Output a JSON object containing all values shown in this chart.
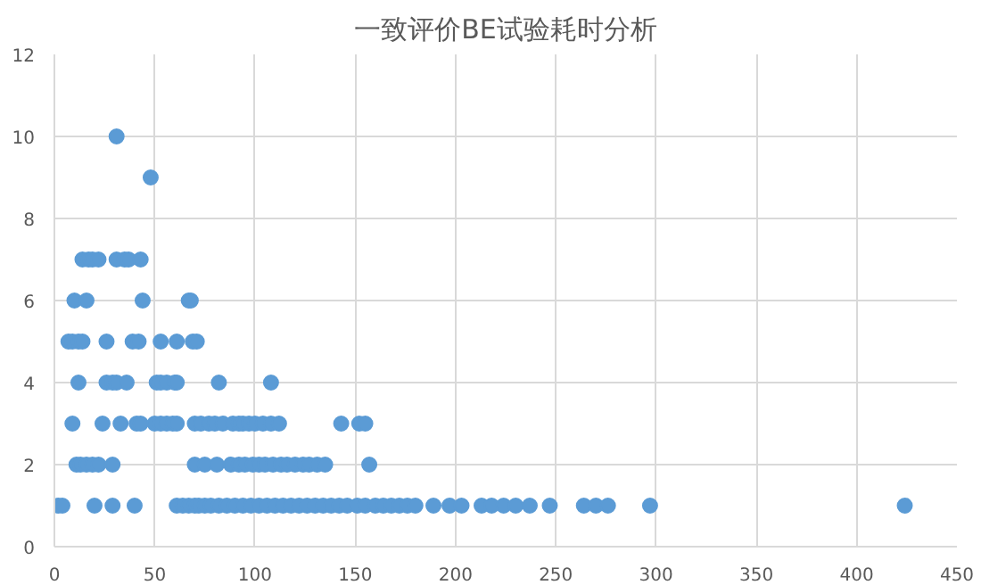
{
  "chart_data": {
    "type": "scatter",
    "title": "一致评价BE试验耗时分析",
    "x": [
      31,
      48,
      14,
      17,
      19,
      22,
      31,
      35,
      37,
      43,
      10,
      16,
      44,
      67,
      68,
      7,
      9,
      12,
      14,
      26,
      39,
      42,
      53,
      61,
      69,
      71,
      12,
      26,
      29,
      31,
      36,
      51,
      53,
      56,
      60,
      61,
      82,
      108,
      9,
      24,
      33,
      41,
      43,
      50,
      53,
      56,
      59,
      61,
      70,
      73,
      77,
      80,
      84,
      89,
      92,
      94,
      97,
      100,
      104,
      108,
      112,
      143,
      152,
      155,
      11,
      13,
      16,
      19,
      22,
      29,
      70,
      75,
      81,
      88,
      92,
      95,
      99,
      102,
      105,
      109,
      113,
      116,
      120,
      124,
      127,
      131,
      135,
      157,
      2,
      4,
      20,
      29,
      40,
      61,
      64,
      67,
      70,
      72,
      75,
      78,
      82,
      86,
      90,
      94,
      98,
      102,
      106,
      110,
      114,
      118,
      122,
      126,
      130,
      134,
      138,
      142,
      146,
      151,
      155,
      160,
      164,
      168,
      172,
      176,
      180,
      189,
      197,
      203,
      213,
      218,
      224,
      230,
      237,
      247,
      264,
      270,
      276,
      297,
      424
    ],
    "series": [
      {
        "color": "#5b9bd5",
        "values": [
          10,
          9,
          7,
          7,
          7,
          7,
          7,
          7,
          7,
          7,
          6,
          6,
          6,
          6,
          6,
          5,
          5,
          5,
          5,
          5,
          5,
          5,
          5,
          5,
          5,
          5,
          4,
          4,
          4,
          4,
          4,
          4,
          4,
          4,
          4,
          4,
          4,
          4,
          3,
          3,
          3,
          3,
          3,
          3,
          3,
          3,
          3,
          3,
          3,
          3,
          3,
          3,
          3,
          3,
          3,
          3,
          3,
          3,
          3,
          3,
          3,
          3,
          3,
          3,
          2,
          2,
          2,
          2,
          2,
          2,
          2,
          2,
          2,
          2,
          2,
          2,
          2,
          2,
          2,
          2,
          2,
          2,
          2,
          2,
          2,
          2,
          2,
          2,
          1,
          1,
          1,
          1,
          1,
          1,
          1,
          1,
          1,
          1,
          1,
          1,
          1,
          1,
          1,
          1,
          1,
          1,
          1,
          1,
          1,
          1,
          1,
          1,
          1,
          1,
          1,
          1,
          1,
          1,
          1,
          1,
          1,
          1,
          1,
          1,
          1,
          1,
          1,
          1,
          1,
          1,
          1,
          1,
          1,
          1,
          1,
          1,
          1,
          1,
          1
        ]
      }
    ],
    "xlim": [
      0,
      450
    ],
    "xticks": [
      0,
      50,
      100,
      150,
      200,
      250,
      300,
      350,
      400,
      450
    ],
    "ylim": [
      0,
      12
    ],
    "yticks": [
      0,
      2,
      4,
      6,
      8,
      10,
      12
    ],
    "grid": true,
    "marker": "circle"
  }
}
